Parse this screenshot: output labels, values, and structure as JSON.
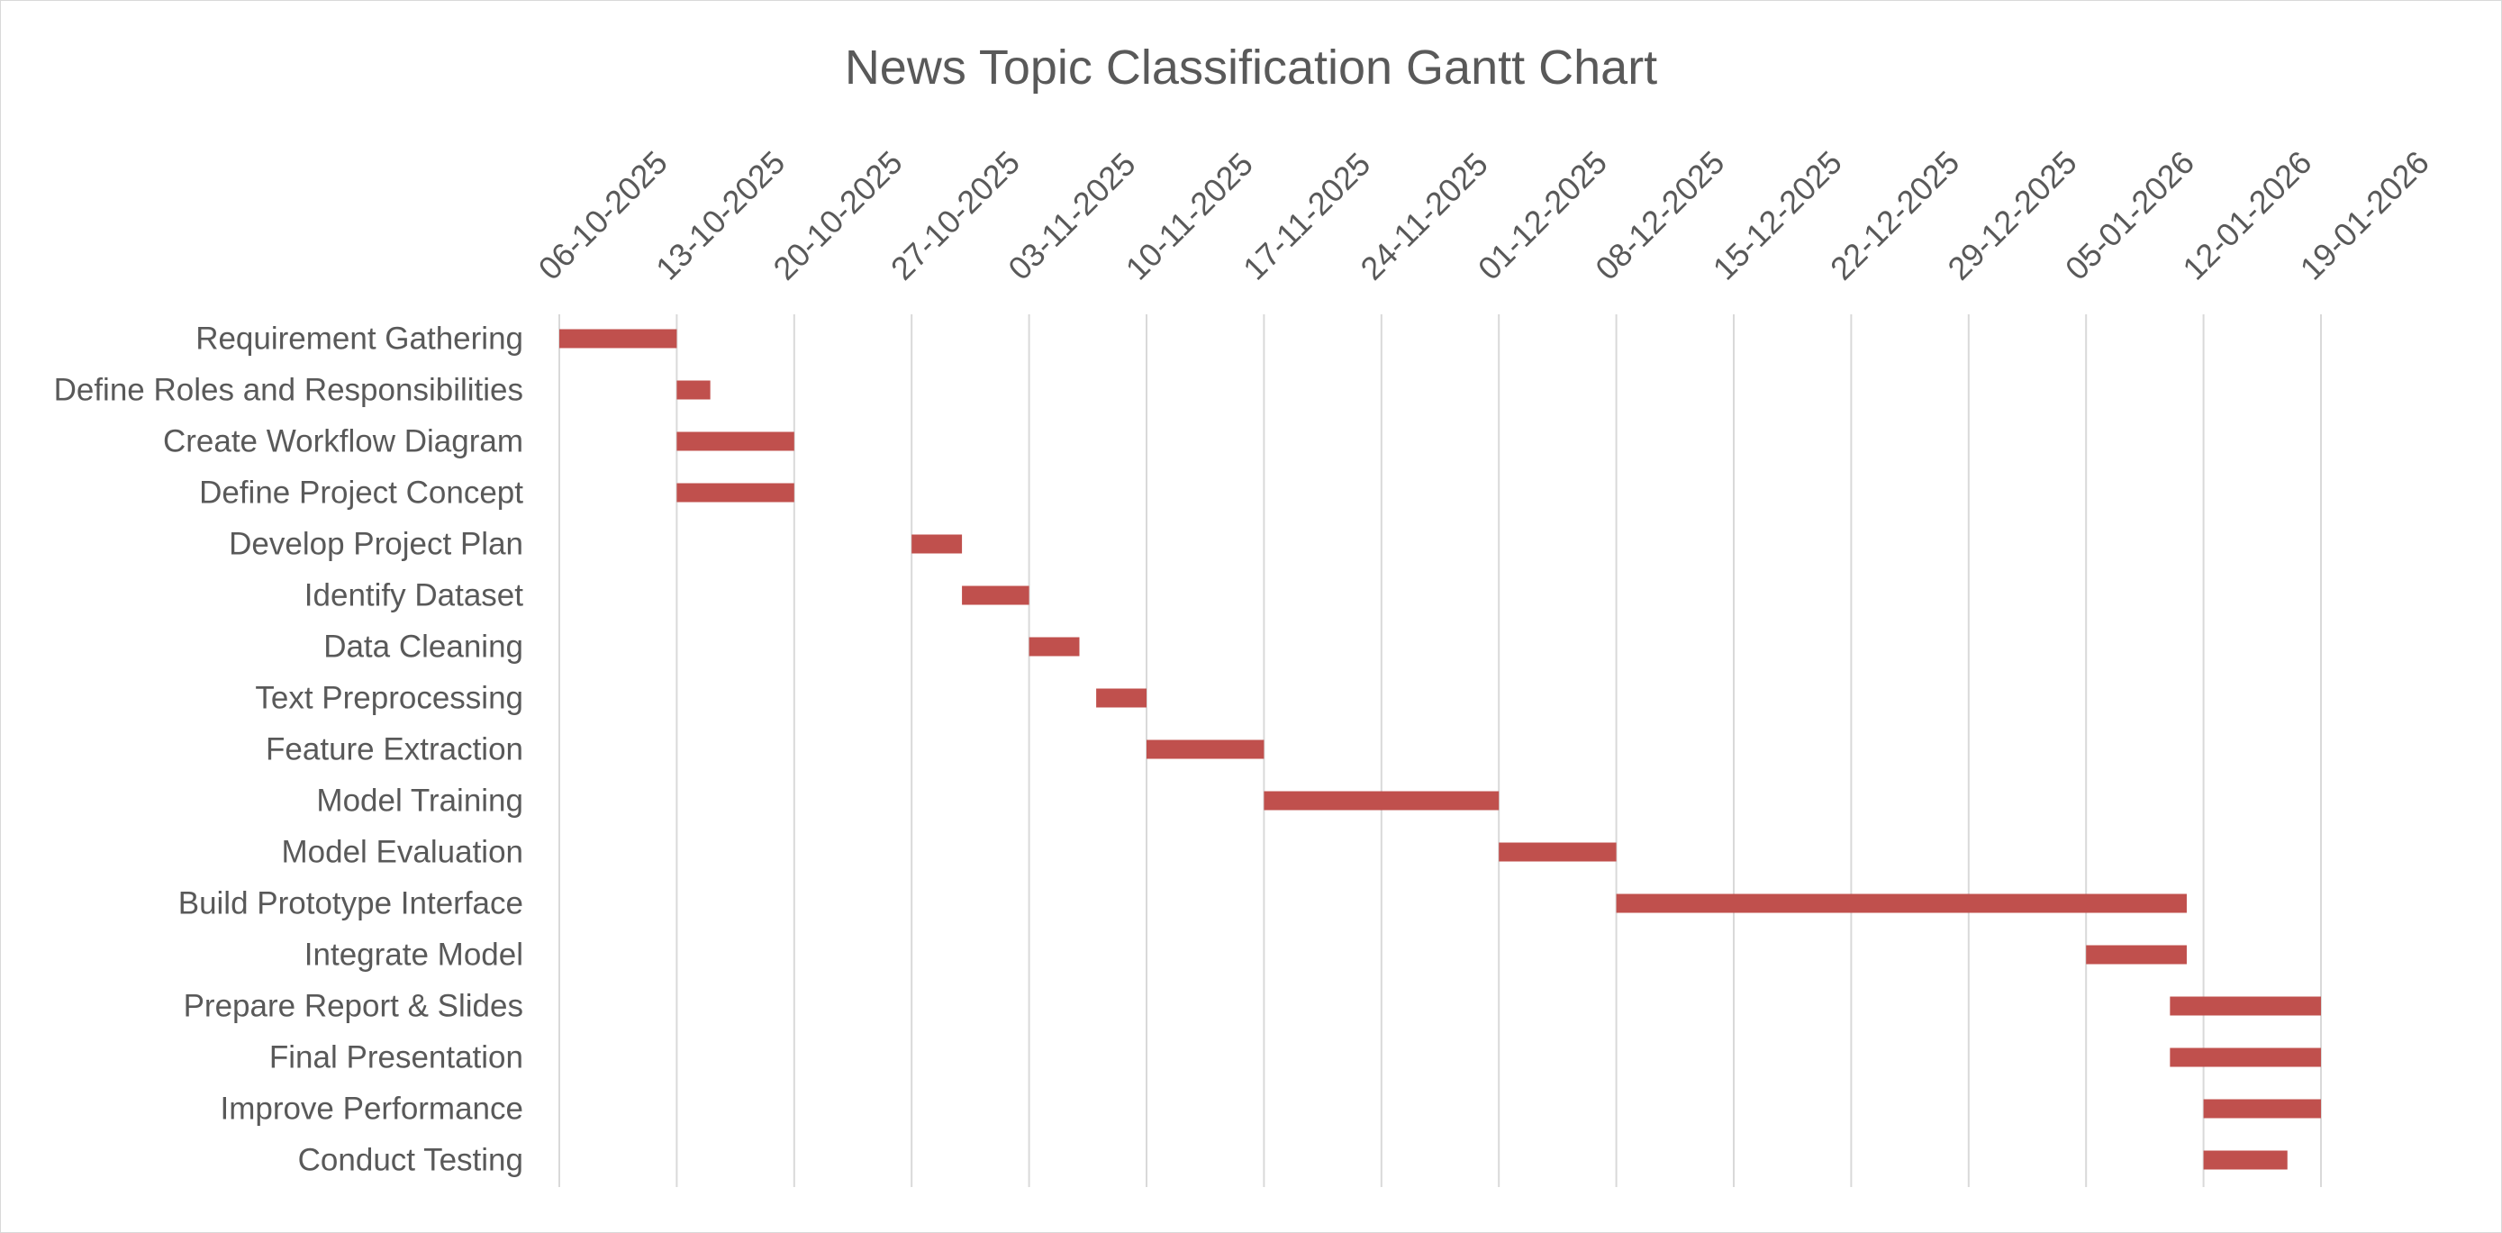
{
  "chart_data": {
    "type": "gantt",
    "title": "News Topic Classification Gantt Chart",
    "xlabel": "",
    "ylabel": "",
    "x_axis_position": "top",
    "x_date_format": "DD-MM-YYYY",
    "xlim": [
      "2025-10-06",
      "2026-01-19"
    ],
    "x_ticks": [
      "06-10-2025",
      "13-10-2025",
      "20-10-2025",
      "27-10-2025",
      "03-11-2025",
      "10-11-2025",
      "17-11-2025",
      "24-11-2025",
      "01-12-2025",
      "08-12-2025",
      "15-12-2025",
      "22-12-2025",
      "29-12-2025",
      "05-01-2026",
      "12-01-2026",
      "19-01-2026"
    ],
    "grid": true,
    "legend": false,
    "bar_color": "#c0504d",
    "gridline_color": "#d9d9d9",
    "text_color": "#595959",
    "tasks": [
      {
        "name": "Requirement Gathering",
        "start": "2025-10-06",
        "end": "2025-10-13"
      },
      {
        "name": "Define Roles and Responsibilities",
        "start": "2025-10-13",
        "end": "2025-10-15"
      },
      {
        "name": "Create Workflow Diagram",
        "start": "2025-10-13",
        "end": "2025-10-20"
      },
      {
        "name": "Define Project Concept",
        "start": "2025-10-13",
        "end": "2025-10-20"
      },
      {
        "name": "Develop Project Plan",
        "start": "2025-10-27",
        "end": "2025-10-30"
      },
      {
        "name": "Identify Dataset",
        "start": "2025-10-30",
        "end": "2025-11-03"
      },
      {
        "name": "Data Cleaning",
        "start": "2025-11-03",
        "end": "2025-11-06"
      },
      {
        "name": "Text Preprocessing",
        "start": "2025-11-07",
        "end": "2025-11-10"
      },
      {
        "name": "Feature Extraction",
        "start": "2025-11-10",
        "end": "2025-11-17"
      },
      {
        "name": "Model Training",
        "start": "2025-11-17",
        "end": "2025-12-01"
      },
      {
        "name": "Model Evaluation",
        "start": "2025-12-01",
        "end": "2025-12-08"
      },
      {
        "name": "Build Prototype Interface",
        "start": "2025-12-08",
        "end": "2026-01-11"
      },
      {
        "name": "Integrate Model",
        "start": "2026-01-05",
        "end": "2026-01-11"
      },
      {
        "name": "Prepare Report & Slides",
        "start": "2026-01-10",
        "end": "2026-01-19"
      },
      {
        "name": "Final Presentation",
        "start": "2026-01-10",
        "end": "2026-01-19"
      },
      {
        "name": "Improve Performance",
        "start": "2026-01-12",
        "end": "2026-01-19"
      },
      {
        "name": "Conduct Testing",
        "start": "2026-01-12",
        "end": "2026-01-17"
      }
    ]
  }
}
